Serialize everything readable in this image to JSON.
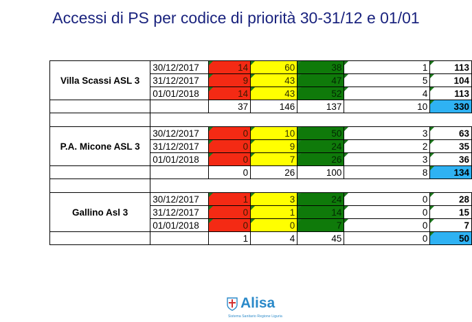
{
  "title": "Accessi di PS per codice di priorità 30-31/12 e 01/01",
  "sections": [
    {
      "name": "Villa Scassi ASL 3",
      "rows": [
        {
          "date": "30/12/2017",
          "red": "14",
          "yellow": "60",
          "green": "38",
          "white": "1",
          "total": "113"
        },
        {
          "date": "31/12/2017",
          "red": "9",
          "yellow": "43",
          "green": "47",
          "white": "5",
          "total": "104"
        },
        {
          "date": "01/01/2018",
          "red": "14",
          "yellow": "43",
          "green": "52",
          "white": "4",
          "total": "113"
        }
      ],
      "totals": {
        "red": "37",
        "yellow": "146",
        "green": "137",
        "white": "10",
        "total": "330"
      }
    },
    {
      "name": "P.A. Micone ASL 3",
      "rows": [
        {
          "date": "30/12/2017",
          "red": "0",
          "yellow": "10",
          "green": "50",
          "white": "3",
          "total": "63"
        },
        {
          "date": "31/12/2017",
          "red": "0",
          "yellow": "9",
          "green": "24",
          "white": "2",
          "total": "35"
        },
        {
          "date": "01/01/2018",
          "red": "0",
          "yellow": "7",
          "green": "26",
          "white": "3",
          "total": "36"
        }
      ],
      "totals": {
        "red": "0",
        "yellow": "26",
        "green": "100",
        "white": "8",
        "total": "134"
      }
    },
    {
      "name": "Gallino Asl 3",
      "rows": [
        {
          "date": "30/12/2017",
          "red": "1",
          "yellow": "3",
          "green": "24",
          "white": "0",
          "total": "28"
        },
        {
          "date": "31/12/2017",
          "red": "0",
          "yellow": "1",
          "green": "14",
          "white": "0",
          "total": "15"
        },
        {
          "date": "01/01/2018",
          "red": "0",
          "yellow": "0",
          "green": "7",
          "white": "0",
          "total": "7"
        }
      ],
      "totals": {
        "red": "1",
        "yellow": "4",
        "green": "45",
        "white": "0",
        "total": "50"
      }
    }
  ],
  "colors": {
    "red": "#f42a14",
    "yellow": "#ffff00",
    "green": "#0f7a0a",
    "grand_total": "#2fb2f3",
    "title": "#1a237e",
    "logo": "#2a89c9"
  },
  "logo": {
    "word": "Alisa",
    "subtitle": "Sistema Sanitario Regione Liguria",
    "icon": "liguria-crest-icon"
  }
}
